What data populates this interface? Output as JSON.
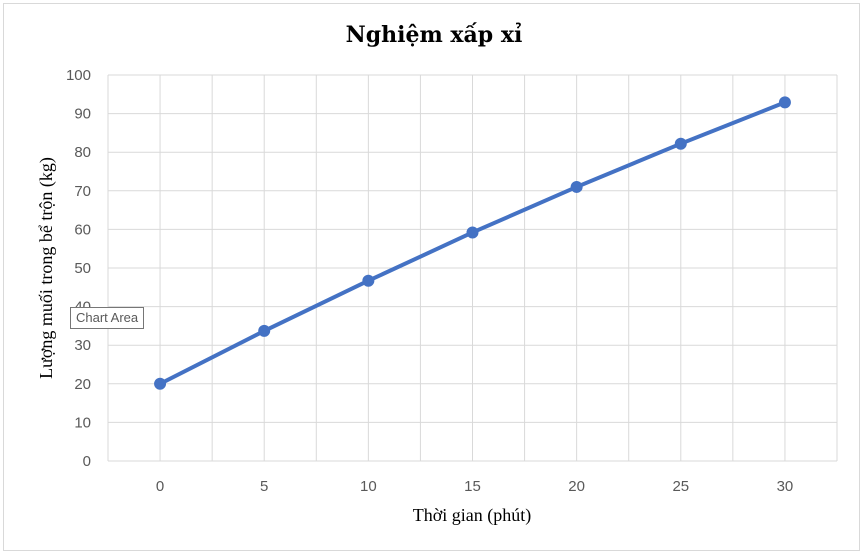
{
  "chart_data": {
    "type": "line",
    "title": "Nghiệm xấp xỉ",
    "xlabel": "Thời gian (phút)",
    "ylabel": "Lượng muối trong bể trộn (kg)",
    "x": [
      0,
      5,
      10,
      15,
      20,
      25,
      30
    ],
    "series": [
      {
        "values": [
          20,
          33.7,
          46.7,
          59.2,
          71,
          82.2,
          92.9
        ]
      }
    ],
    "xlim": [
      -2.5,
      32.5
    ],
    "ylim": [
      0,
      100
    ],
    "x_ticks": [
      "0",
      "5",
      "10",
      "15",
      "20",
      "25",
      "30"
    ],
    "y_ticks": [
      "0",
      "10",
      "20",
      "30",
      "40",
      "50",
      "60",
      "70",
      "80",
      "90",
      "100"
    ],
    "grid": true,
    "line_color": "#4472c4",
    "gridline_color": "#d9d9d9"
  },
  "tooltip": {
    "label": "Chart Area"
  }
}
